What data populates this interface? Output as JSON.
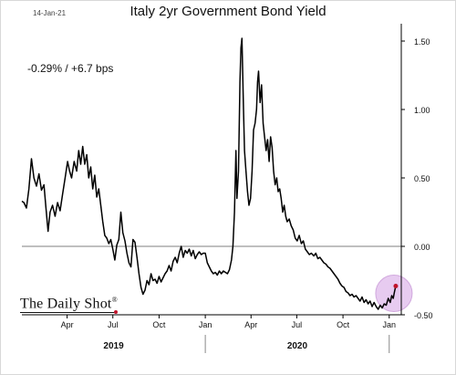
{
  "header": {
    "date": "14-Jan-21",
    "title": "Italy 2yr Government Bond Yield"
  },
  "annotation": "-0.29%  /  +6.7 bps",
  "logo_text": "The Daily Shot",
  "logo_mark": "®",
  "colors": {
    "line": "#000000",
    "highlight_fill": "#e3c2ee",
    "highlight_stroke": "#c99ad8",
    "marker": "#c0142b",
    "axis": "#000000"
  },
  "chart_data": {
    "type": "line",
    "title": "Italy 2yr Government Bond Yield",
    "xlabel": "",
    "ylabel": "",
    "ylim": [
      -0.5,
      1.6
    ],
    "xlim": [
      "2019-01-01",
      "2021-01-25"
    ],
    "yticks": [
      {
        "value": 1.5,
        "label": "1.50"
      },
      {
        "value": 1.0,
        "label": "1.00"
      },
      {
        "value": 0.5,
        "label": "0.50"
      },
      {
        "value": 0.0,
        "label": "0.00"
      },
      {
        "value": -0.5,
        "label": "-0.50"
      }
    ],
    "xticks": [
      {
        "date": "2019-04-01",
        "label": "Apr"
      },
      {
        "date": "2019-07-01",
        "label": "Jul"
      },
      {
        "date": "2019-10-01",
        "label": "Oct"
      },
      {
        "date": "2020-01-01",
        "label": "Jan"
      },
      {
        "date": "2020-04-01",
        "label": "Apr"
      },
      {
        "date": "2020-07-01",
        "label": "Jul"
      },
      {
        "date": "2020-10-01",
        "label": "Oct"
      },
      {
        "date": "2021-01-01",
        "label": "Jan"
      }
    ],
    "year_labels": [
      {
        "label": "2019",
        "from": "2019-01-01",
        "to": "2020-01-01"
      },
      {
        "label": "2020",
        "from": "2020-01-01",
        "to": "2021-01-01"
      }
    ],
    "zero_line": 0,
    "grid": false,
    "series": [
      {
        "name": "",
        "points": [
          [
            "2019-01-01",
            0.33
          ],
          [
            "2019-01-05",
            0.32
          ],
          [
            "2019-01-10",
            0.28
          ],
          [
            "2019-01-15",
            0.42
          ],
          [
            "2019-01-20",
            0.64
          ],
          [
            "2019-01-25",
            0.5
          ],
          [
            "2019-01-30",
            0.44
          ],
          [
            "2019-02-04",
            0.53
          ],
          [
            "2019-02-09",
            0.41
          ],
          [
            "2019-02-14",
            0.45
          ],
          [
            "2019-02-18",
            0.28
          ],
          [
            "2019-02-22",
            0.11
          ],
          [
            "2019-02-26",
            0.25
          ],
          [
            "2019-03-03",
            0.3
          ],
          [
            "2019-03-08",
            0.22
          ],
          [
            "2019-03-13",
            0.32
          ],
          [
            "2019-03-18",
            0.26
          ],
          [
            "2019-03-23",
            0.38
          ],
          [
            "2019-03-28",
            0.5
          ],
          [
            "2019-04-02",
            0.62
          ],
          [
            "2019-04-06",
            0.55
          ],
          [
            "2019-04-10",
            0.5
          ],
          [
            "2019-04-15",
            0.62
          ],
          [
            "2019-04-20",
            0.55
          ],
          [
            "2019-04-24",
            0.7
          ],
          [
            "2019-04-28",
            0.6
          ],
          [
            "2019-05-02",
            0.73
          ],
          [
            "2019-05-06",
            0.6
          ],
          [
            "2019-05-10",
            0.67
          ],
          [
            "2019-05-14",
            0.5
          ],
          [
            "2019-05-18",
            0.58
          ],
          [
            "2019-05-22",
            0.42
          ],
          [
            "2019-05-26",
            0.52
          ],
          [
            "2019-05-30",
            0.36
          ],
          [
            "2019-06-03",
            0.42
          ],
          [
            "2019-06-07",
            0.3
          ],
          [
            "2019-06-11",
            0.18
          ],
          [
            "2019-06-15",
            0.08
          ],
          [
            "2019-06-19",
            0.06
          ],
          [
            "2019-06-23",
            0.02
          ],
          [
            "2019-06-27",
            0.05
          ],
          [
            "2019-07-01",
            -0.02
          ],
          [
            "2019-07-05",
            -0.1
          ],
          [
            "2019-07-09",
            0.01
          ],
          [
            "2019-07-13",
            0.05
          ],
          [
            "2019-07-17",
            0.25
          ],
          [
            "2019-07-21",
            0.1
          ],
          [
            "2019-07-25",
            0.04
          ],
          [
            "2019-07-29",
            -0.05
          ],
          [
            "2019-08-02",
            -0.12
          ],
          [
            "2019-08-06",
            -0.15
          ],
          [
            "2019-08-10",
            0.05
          ],
          [
            "2019-08-14",
            0.03
          ],
          [
            "2019-08-18",
            -0.08
          ],
          [
            "2019-08-22",
            -0.2
          ],
          [
            "2019-08-26",
            -0.3
          ],
          [
            "2019-08-30",
            -0.35
          ],
          [
            "2019-09-03",
            -0.32
          ],
          [
            "2019-09-07",
            -0.25
          ],
          [
            "2019-09-11",
            -0.28
          ],
          [
            "2019-09-15",
            -0.2
          ],
          [
            "2019-09-19",
            -0.25
          ],
          [
            "2019-09-23",
            -0.24
          ],
          [
            "2019-09-27",
            -0.27
          ],
          [
            "2019-10-01",
            -0.22
          ],
          [
            "2019-10-05",
            -0.26
          ],
          [
            "2019-10-09",
            -0.23
          ],
          [
            "2019-10-13",
            -0.2
          ],
          [
            "2019-10-17",
            -0.18
          ],
          [
            "2019-10-21",
            -0.14
          ],
          [
            "2019-10-25",
            -0.18
          ],
          [
            "2019-10-29",
            -0.11
          ],
          [
            "2019-11-02",
            -0.08
          ],
          [
            "2019-11-06",
            -0.12
          ],
          [
            "2019-11-10",
            -0.05
          ],
          [
            "2019-11-14",
            0.0
          ],
          [
            "2019-11-18",
            -0.08
          ],
          [
            "2019-11-22",
            -0.03
          ],
          [
            "2019-11-26",
            -0.05
          ],
          [
            "2019-11-30",
            -0.02
          ],
          [
            "2019-12-04",
            -0.07
          ],
          [
            "2019-12-08",
            -0.03
          ],
          [
            "2019-12-12",
            -0.09
          ],
          [
            "2019-12-16",
            -0.06
          ],
          [
            "2019-12-20",
            -0.04
          ],
          [
            "2019-12-24",
            -0.06
          ],
          [
            "2019-12-28",
            -0.05
          ],
          [
            "2020-01-01",
            -0.05
          ],
          [
            "2020-01-05",
            -0.12
          ],
          [
            "2020-01-09",
            -0.15
          ],
          [
            "2020-01-13",
            -0.18
          ],
          [
            "2020-01-17",
            -0.2
          ],
          [
            "2020-01-21",
            -0.19
          ],
          [
            "2020-01-25",
            -0.21
          ],
          [
            "2020-01-29",
            -0.18
          ],
          [
            "2020-02-02",
            -0.2
          ],
          [
            "2020-02-06",
            -0.18
          ],
          [
            "2020-02-10",
            -0.19
          ],
          [
            "2020-02-14",
            -0.2
          ],
          [
            "2020-02-18",
            -0.17
          ],
          [
            "2020-02-22",
            -0.1
          ],
          [
            "2020-02-25",
            0.0
          ],
          [
            "2020-02-28",
            0.25
          ],
          [
            "2020-03-02",
            0.7
          ],
          [
            "2020-03-04",
            0.35
          ],
          [
            "2020-03-07",
            0.55
          ],
          [
            "2020-03-10",
            1.2
          ],
          [
            "2020-03-12",
            1.45
          ],
          [
            "2020-03-14",
            1.52
          ],
          [
            "2020-03-17",
            1.0
          ],
          [
            "2020-03-19",
            0.7
          ],
          [
            "2020-03-22",
            0.55
          ],
          [
            "2020-03-25",
            0.4
          ],
          [
            "2020-03-28",
            0.3
          ],
          [
            "2020-03-31",
            0.35
          ],
          [
            "2020-04-03",
            0.55
          ],
          [
            "2020-04-06",
            0.85
          ],
          [
            "2020-04-09",
            0.9
          ],
          [
            "2020-04-12",
            1.0
          ],
          [
            "2020-04-14",
            1.2
          ],
          [
            "2020-04-16",
            1.28
          ],
          [
            "2020-04-19",
            1.05
          ],
          [
            "2020-04-22",
            1.18
          ],
          [
            "2020-04-25",
            0.9
          ],
          [
            "2020-04-28",
            0.8
          ],
          [
            "2020-05-01",
            0.7
          ],
          [
            "2020-05-04",
            0.78
          ],
          [
            "2020-05-07",
            0.62
          ],
          [
            "2020-05-10",
            0.8
          ],
          [
            "2020-05-13",
            0.72
          ],
          [
            "2020-05-16",
            0.55
          ],
          [
            "2020-05-19",
            0.45
          ],
          [
            "2020-05-22",
            0.5
          ],
          [
            "2020-05-25",
            0.4
          ],
          [
            "2020-05-28",
            0.42
          ],
          [
            "2020-05-31",
            0.35
          ],
          [
            "2020-06-03",
            0.25
          ],
          [
            "2020-06-06",
            0.3
          ],
          [
            "2020-06-09",
            0.22
          ],
          [
            "2020-06-12",
            0.18
          ],
          [
            "2020-06-16",
            0.2
          ],
          [
            "2020-06-20",
            0.15
          ],
          [
            "2020-06-24",
            0.12
          ],
          [
            "2020-06-28",
            0.06
          ],
          [
            "2020-07-02",
            0.04
          ],
          [
            "2020-07-06",
            0.08
          ],
          [
            "2020-07-10",
            0.02
          ],
          [
            "2020-07-14",
            0.04
          ],
          [
            "2020-07-18",
            -0.02
          ],
          [
            "2020-07-22",
            -0.04
          ],
          [
            "2020-07-26",
            -0.06
          ],
          [
            "2020-07-30",
            -0.05
          ],
          [
            "2020-08-04",
            -0.07
          ],
          [
            "2020-08-08",
            -0.05
          ],
          [
            "2020-08-12",
            -0.09
          ],
          [
            "2020-08-16",
            -0.08
          ],
          [
            "2020-08-20",
            -0.1
          ],
          [
            "2020-08-24",
            -0.12
          ],
          [
            "2020-08-28",
            -0.13
          ],
          [
            "2020-09-01",
            -0.15
          ],
          [
            "2020-09-05",
            -0.16
          ],
          [
            "2020-09-09",
            -0.18
          ],
          [
            "2020-09-13",
            -0.2
          ],
          [
            "2020-09-17",
            -0.22
          ],
          [
            "2020-09-21",
            -0.24
          ],
          [
            "2020-09-25",
            -0.27
          ],
          [
            "2020-09-29",
            -0.29
          ],
          [
            "2020-10-03",
            -0.3
          ],
          [
            "2020-10-07",
            -0.33
          ],
          [
            "2020-10-11",
            -0.34
          ],
          [
            "2020-10-15",
            -0.36
          ],
          [
            "2020-10-19",
            -0.35
          ],
          [
            "2020-10-23",
            -0.37
          ],
          [
            "2020-10-27",
            -0.36
          ],
          [
            "2020-10-31",
            -0.38
          ],
          [
            "2020-11-04",
            -0.4
          ],
          [
            "2020-11-08",
            -0.37
          ],
          [
            "2020-11-12",
            -0.41
          ],
          [
            "2020-11-16",
            -0.39
          ],
          [
            "2020-11-20",
            -0.42
          ],
          [
            "2020-11-24",
            -0.4
          ],
          [
            "2020-11-28",
            -0.44
          ],
          [
            "2020-12-02",
            -0.41
          ],
          [
            "2020-12-06",
            -0.44
          ],
          [
            "2020-12-10",
            -0.46
          ],
          [
            "2020-12-14",
            -0.43
          ],
          [
            "2020-12-18",
            -0.45
          ],
          [
            "2020-12-22",
            -0.42
          ],
          [
            "2020-12-26",
            -0.43
          ],
          [
            "2020-12-30",
            -0.38
          ],
          [
            "2021-01-03",
            -0.41
          ],
          [
            "2021-01-06",
            -0.36
          ],
          [
            "2021-01-09",
            -0.38
          ],
          [
            "2021-01-11",
            -0.34
          ],
          [
            "2021-01-14",
            -0.29
          ]
        ]
      }
    ],
    "last_point": {
      "date": "2021-01-14",
      "value": -0.29
    }
  }
}
